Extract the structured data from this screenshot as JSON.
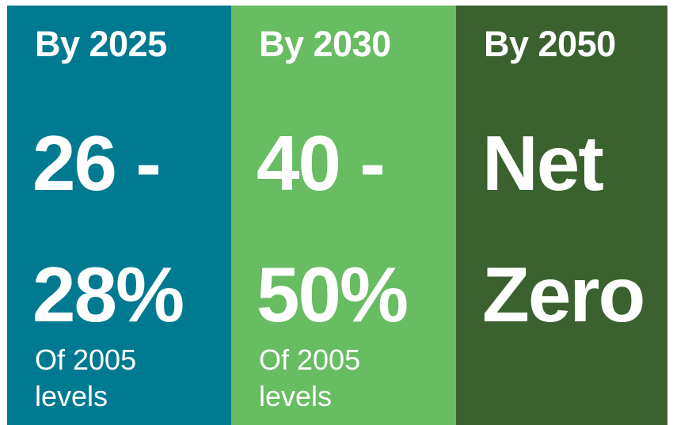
{
  "colors": {
    "panel_1": "#007a91",
    "panel_2": "#68bc62",
    "panel_3": "#3b612e",
    "text": "#ffffff"
  },
  "panels": [
    {
      "heading": "By 2025",
      "line1": "26 -",
      "line2": "28%",
      "note_line1": "Of 2005",
      "note_line2": "levels"
    },
    {
      "heading": "By 2030",
      "line1": "40 -",
      "line2": "50%",
      "note_line1": "Of 2005",
      "note_line2": "levels"
    },
    {
      "heading": "By 2050",
      "line1": "Net",
      "line2": "Zero"
    }
  ]
}
